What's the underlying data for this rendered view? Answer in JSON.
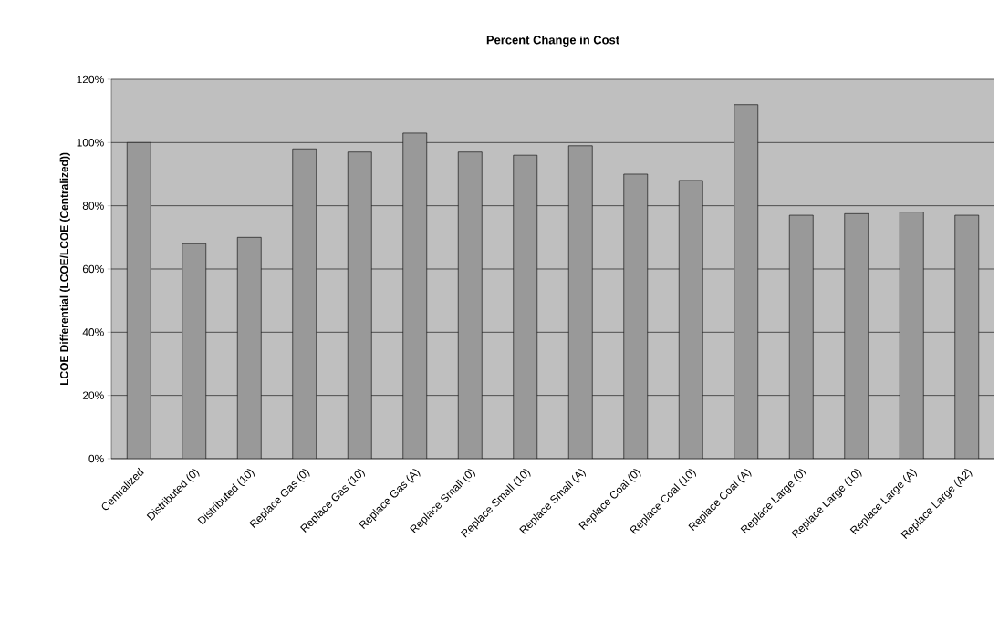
{
  "chart_data": {
    "type": "bar",
    "title": "Percent Change in Cost",
    "ylabel": "LCOE Differential (LCOE/LCOE (Centralized))",
    "categories": [
      "Centralized",
      "Distributed (0)",
      "Distributed (10)",
      "Replace Gas (0)",
      "Replace Gas (10)",
      "Replace Gas (A)",
      "Replace Small (0)",
      "Replace Small (10)",
      "Replace Small (A)",
      "Replace Coal (0)",
      "Replace Coal (10)",
      "Replace Coal (A)",
      "Replace Large (0)",
      "Replace Large (10)",
      "Replace Large (A)",
      "Replace Large (A2)"
    ],
    "values": [
      100,
      68,
      70,
      98,
      97,
      103,
      97,
      96,
      99,
      90,
      88,
      112,
      77,
      77.5,
      78,
      77
    ],
    "color": "#999999",
    "ylim": [
      0,
      120
    ],
    "yticks": [
      {
        "value": 0,
        "label": "0%"
      },
      {
        "value": 20,
        "label": "20%"
      },
      {
        "value": 40,
        "label": "40%"
      },
      {
        "value": 60,
        "label": "60%"
      },
      {
        "value": 80,
        "label": "80%"
      },
      {
        "value": 100,
        "label": "100%"
      },
      {
        "value": 120,
        "label": "120%"
      }
    ],
    "grid": "y"
  }
}
